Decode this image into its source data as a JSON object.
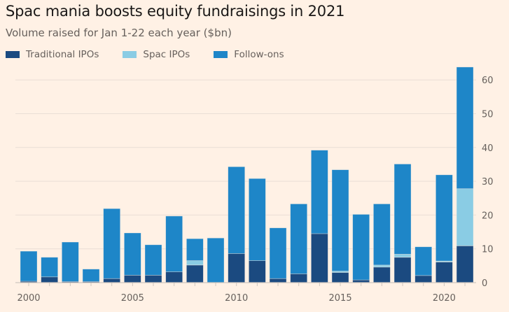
{
  "chart_data": {
    "type": "bar",
    "stacked": true,
    "title": "Spac mania boosts equity fundraisings in 2021",
    "subtitle": "Volume raised for Jan 1-22 each year ($bn)",
    "xlabel": "",
    "ylabel": "",
    "ylim": [
      0,
      65
    ],
    "yticks": [
      0,
      10,
      20,
      30,
      40,
      50,
      60
    ],
    "xtick_labels": [
      "2000",
      "2005",
      "2010",
      "2015",
      "2020"
    ],
    "grid": true,
    "legend_position": "top-left",
    "categories": [
      "2000",
      "2001",
      "2002",
      "2003",
      "2004",
      "2005",
      "2006",
      "2007",
      "2008",
      "2009",
      "2010",
      "2011",
      "2012",
      "2013",
      "2014",
      "2015",
      "2016",
      "2017",
      "2018",
      "2019",
      "2020",
      "2021"
    ],
    "series": [
      {
        "name": "Traditional IPOs",
        "color": "#1B4A80",
        "values": [
          0.4,
          1.7,
          0.3,
          0.3,
          1.2,
          2.2,
          2.2,
          3.2,
          5.2,
          0.0,
          8.6,
          6.5,
          1.2,
          2.6,
          14.5,
          3.0,
          0.8,
          4.6,
          7.5,
          2.1,
          6.1,
          10.9
        ]
      },
      {
        "name": "Spac IPOs",
        "color": "#8ACCE4",
        "values": [
          0,
          0,
          0,
          0,
          0,
          0,
          0,
          0,
          1.3,
          0,
          0,
          0,
          0,
          0,
          0,
          0.4,
          0,
          0.6,
          0.9,
          0,
          0.3,
          16.9
        ]
      },
      {
        "name": "Follow-ons",
        "color": "#1E86C8",
        "values": [
          8.9,
          5.8,
          11.7,
          3.7,
          20.7,
          12.5,
          9.0,
          16.5,
          6.5,
          13.2,
          25.7,
          24.3,
          15.0,
          20.7,
          24.7,
          30.0,
          19.4,
          18.1,
          26.7,
          8.5,
          25.5,
          36.0
        ]
      }
    ]
  }
}
